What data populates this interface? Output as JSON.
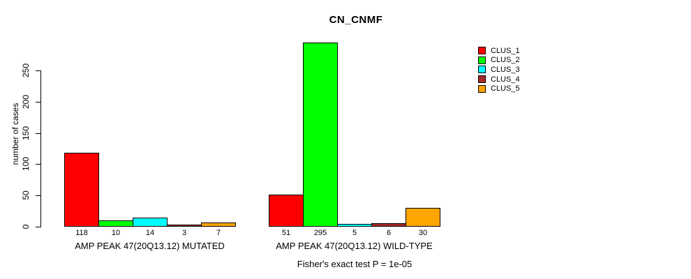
{
  "page": {
    "background_color": "#FFFFFF",
    "text_color": "#000000"
  },
  "chart_data": {
    "type": "bar",
    "title": "CN_CNMF",
    "xlabel": "",
    "ylabel": "number of cases",
    "yticks": [
      0,
      50,
      100,
      150,
      200,
      250
    ],
    "ylim": [
      0,
      295
    ],
    "grid": false,
    "legend_position": "right-outside",
    "categories": [
      "AMP PEAK 47(20Q13.12) MUTATED",
      "AMP PEAK 47(20Q13.12) WILD-TYPE"
    ],
    "series": [
      {
        "name": "CLUS_1",
        "color": "#FF0000",
        "values": [
          118,
          51
        ]
      },
      {
        "name": "CLUS_2",
        "color": "#00FF00",
        "values": [
          10,
          295
        ]
      },
      {
        "name": "CLUS_3",
        "color": "#00FFFF",
        "values": [
          14,
          5
        ]
      },
      {
        "name": "CLUS_4",
        "color": "#A52A2A",
        "values": [
          3,
          6
        ]
      },
      {
        "name": "CLUS_5",
        "color": "#FFA500",
        "values": [
          7,
          30
        ]
      }
    ],
    "bar_value_labels_shown": true,
    "annotation": "Fisher's exact test P = 1e-05"
  }
}
